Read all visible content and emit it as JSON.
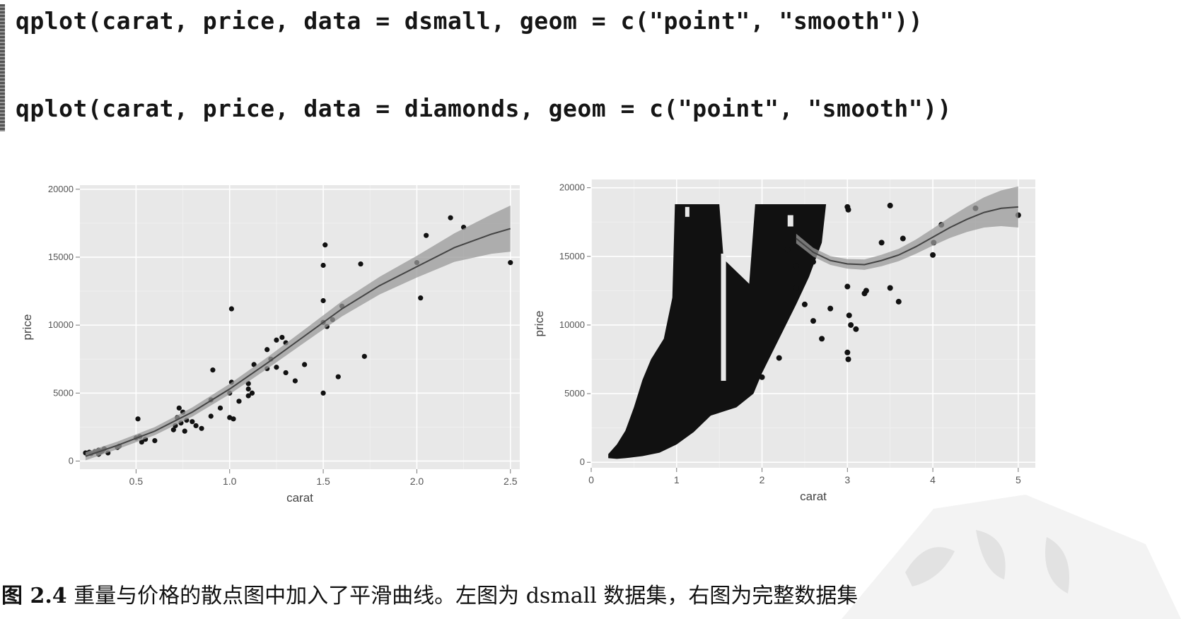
{
  "code": {
    "line1": "qplot(carat, price, data = dsmall, geom = c(\"point\", \"smooth\"))",
    "line2": "qplot(carat, price, data = diamonds, geom = c(\"point\", \"smooth\"))"
  },
  "caption": {
    "figure_no": "图 2.4",
    "text": "重量与价格的散点图中加入了平滑曲线。左图为 dsmall 数据集，右图为完整数据集。"
  },
  "colors": {
    "panel_bg": "#e8e8e8",
    "grid": "#ffffff",
    "point": "#111111",
    "smooth_band": "#9a9a9a",
    "smooth_line": "#444444"
  },
  "chart_data": [
    {
      "type": "scatter",
      "title": "",
      "xlabel": "carat",
      "ylabel": "price",
      "xlim": [
        0.2,
        2.55
      ],
      "ylim": [
        -600,
        20300
      ],
      "x_ticks": [
        0.5,
        1.0,
        1.5,
        2.0,
        2.5
      ],
      "x_tick_labels": [
        "0.5",
        "1.0",
        "1.5",
        "2.0",
        "2.5"
      ],
      "y_ticks": [
        0,
        5000,
        10000,
        15000,
        20000
      ],
      "y_tick_labels": [
        "0",
        "5000",
        "10000",
        "15000",
        "20000"
      ],
      "grid": true,
      "points": [
        [
          0.23,
          600
        ],
        [
          0.25,
          650
        ],
        [
          0.26,
          550
        ],
        [
          0.28,
          700
        ],
        [
          0.3,
          500
        ],
        [
          0.3,
          800
        ],
        [
          0.31,
          650
        ],
        [
          0.32,
          750
        ],
        [
          0.33,
          900
        ],
        [
          0.35,
          600
        ],
        [
          0.4,
          1000
        ],
        [
          0.41,
          1100
        ],
        [
          0.5,
          1700
        ],
        [
          0.51,
          3100
        ],
        [
          0.52,
          1800
        ],
        [
          0.53,
          1400
        ],
        [
          0.55,
          1600
        ],
        [
          0.6,
          1500
        ],
        [
          0.7,
          2300
        ],
        [
          0.71,
          2600
        ],
        [
          0.72,
          3200
        ],
        [
          0.73,
          3900
        ],
        [
          0.74,
          2800
        ],
        [
          0.75,
          3600
        ],
        [
          0.76,
          2200
        ],
        [
          0.77,
          3000
        ],
        [
          0.8,
          2900
        ],
        [
          0.82,
          2600
        ],
        [
          0.85,
          2400
        ],
        [
          0.9,
          3300
        ],
        [
          0.9,
          4500
        ],
        [
          0.91,
          6700
        ],
        [
          0.95,
          3900
        ],
        [
          1.0,
          3200
        ],
        [
          1.0,
          5000
        ],
        [
          1.01,
          5800
        ],
        [
          1.01,
          11200
        ],
        [
          1.02,
          3100
        ],
        [
          1.05,
          4400
        ],
        [
          1.1,
          5300
        ],
        [
          1.1,
          4800
        ],
        [
          1.1,
          5700
        ],
        [
          1.12,
          5000
        ],
        [
          1.13,
          7100
        ],
        [
          1.2,
          6800
        ],
        [
          1.2,
          8200
        ],
        [
          1.22,
          7500
        ],
        [
          1.25,
          6900
        ],
        [
          1.25,
          8900
        ],
        [
          1.28,
          9100
        ],
        [
          1.3,
          6500
        ],
        [
          1.3,
          8700
        ],
        [
          1.35,
          5900
        ],
        [
          1.4,
          7100
        ],
        [
          1.5,
          14400
        ],
        [
          1.5,
          11800
        ],
        [
          1.5,
          10200
        ],
        [
          1.5,
          5000
        ],
        [
          1.51,
          15900
        ],
        [
          1.52,
          9900
        ],
        [
          1.55,
          10400
        ],
        [
          1.58,
          6200
        ],
        [
          1.6,
          11400
        ],
        [
          1.7,
          14500
        ],
        [
          1.72,
          7700
        ],
        [
          2.0,
          14600
        ],
        [
          2.02,
          12000
        ],
        [
          2.05,
          16600
        ],
        [
          2.18,
          17900
        ],
        [
          2.25,
          17200
        ],
        [
          2.5,
          14600
        ]
      ],
      "smooth": [
        [
          0.23,
          350
        ],
        [
          0.4,
          1150
        ],
        [
          0.6,
          2200
        ],
        [
          0.8,
          3600
        ],
        [
          1.0,
          5300
        ],
        [
          1.2,
          7200
        ],
        [
          1.4,
          9200
        ],
        [
          1.6,
          11200
        ],
        [
          1.8,
          12900
        ],
        [
          2.0,
          14300
        ],
        [
          2.2,
          15700
        ],
        [
          2.4,
          16700
        ],
        [
          2.5,
          17100
        ]
      ],
      "smooth_se": [
        300,
        280,
        300,
        340,
        380,
        420,
        480,
        560,
        650,
        800,
        1050,
        1450,
        1700
      ]
    },
    {
      "type": "scatter",
      "title": "",
      "xlabel": "carat",
      "ylabel": "price",
      "xlim": [
        0,
        5.2
      ],
      "ylim": [
        -400,
        20600
      ],
      "x_ticks": [
        0,
        1,
        2,
        3,
        4,
        5
      ],
      "x_tick_labels": [
        "0",
        "1",
        "2",
        "3",
        "4",
        "5"
      ],
      "y_ticks": [
        0,
        5000,
        10000,
        15000,
        20000
      ],
      "y_tick_labels": [
        "0",
        "5000",
        "10000",
        "15000",
        "20000"
      ],
      "grid": true,
      "points": [
        [
          3.0,
          18600
        ],
        [
          3.01,
          18400
        ],
        [
          3.0,
          12800
        ],
        [
          3.02,
          10700
        ],
        [
          3.0,
          8000
        ],
        [
          3.01,
          7500
        ],
        [
          3.04,
          10000
        ],
        [
          3.1,
          9700
        ],
        [
          3.2,
          12300
        ],
        [
          3.22,
          12500
        ],
        [
          3.4,
          16000
        ],
        [
          3.5,
          18700
        ],
        [
          3.5,
          12700
        ],
        [
          3.6,
          11700
        ],
        [
          3.65,
          16300
        ],
        [
          4.0,
          15100
        ],
        [
          4.01,
          16000
        ],
        [
          4.1,
          17300
        ],
        [
          4.5,
          18500
        ],
        [
          5.0,
          18000
        ],
        [
          2.3,
          15500
        ],
        [
          2.4,
          14300
        ],
        [
          2.5,
          11500
        ],
        [
          2.6,
          10300
        ],
        [
          2.7,
          9000
        ],
        [
          2.8,
          11200
        ],
        [
          2.6,
          14600
        ],
        [
          2.4,
          12700
        ],
        [
          2.2,
          7600
        ],
        [
          2.0,
          6200
        ]
      ],
      "smooth": [
        [
          2.4,
          16300
        ],
        [
          2.6,
          15300
        ],
        [
          2.8,
          14700
        ],
        [
          3.0,
          14450
        ],
        [
          3.2,
          14400
        ],
        [
          3.4,
          14700
        ],
        [
          3.6,
          15100
        ],
        [
          3.8,
          15700
        ],
        [
          4.0,
          16400
        ],
        [
          4.2,
          17100
        ],
        [
          4.4,
          17700
        ],
        [
          4.6,
          18200
        ],
        [
          4.8,
          18500
        ],
        [
          5.0,
          18600
        ]
      ],
      "smooth_se": [
        350,
        320,
        320,
        350,
        380,
        420,
        450,
        520,
        620,
        760,
        920,
        1100,
        1300,
        1500
      ]
    }
  ]
}
